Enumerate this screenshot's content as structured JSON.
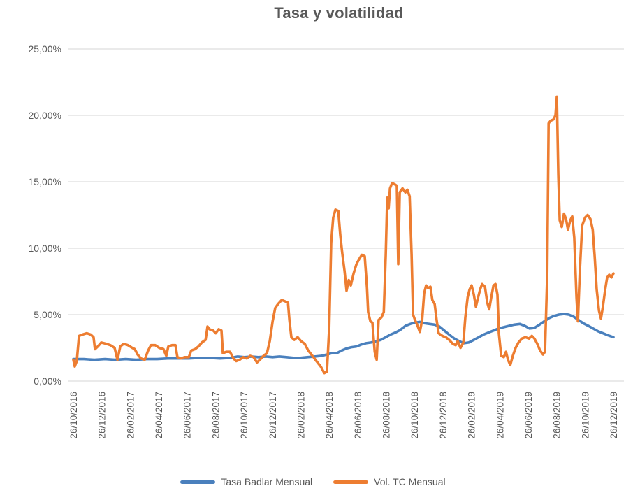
{
  "title": "Tasa y volatilidad",
  "colors": {
    "series1": "#4A80BD",
    "series2": "#ED7D31",
    "grid": "#D6D6D6",
    "text": "#595959",
    "title_text": "#595959",
    "background": "#FFFFFF"
  },
  "legend": {
    "items": [
      {
        "label": "Tasa Badlar Mensual",
        "color": "#4A80BD"
      },
      {
        "label": "Vol. TC Mensual",
        "color": "#ED7D31"
      }
    ]
  },
  "chart_data": {
    "type": "line",
    "title": "Tasa y volatilidad",
    "xlabel": "",
    "ylabel": "",
    "ylim": [
      0,
      25
    ],
    "grid": true,
    "legend_position": "bottom",
    "y_ticks": [
      "0,00%",
      "5,00%",
      "10,00%",
      "15,00%",
      "20,00%",
      "25,00%"
    ],
    "y_tick_values": [
      0,
      5,
      10,
      15,
      20,
      25
    ],
    "x_tick_labels": [
      "26/10/2016",
      "26/12/2016",
      "26/02/2017",
      "26/04/2017",
      "26/06/2017",
      "26/08/2017",
      "26/10/2017",
      "26/12/2017",
      "26/02/2018",
      "26/04/2018",
      "26/06/2018",
      "26/08/2018",
      "26/10/2018",
      "26/12/2018",
      "26/02/2019",
      "26/04/2019",
      "26/06/2019",
      "26/08/2019",
      "26/10/2019",
      "26/12/2019"
    ],
    "x_unit": "tick index (each tick = 2 months from 26/10/2016)",
    "series": [
      {
        "id": "tasa-badlar-mensual",
        "name": "Tasa Badlar Mensual",
        "color": "#4A80BD",
        "points": [
          [
            0,
            1.65
          ],
          [
            0.37,
            1.65
          ],
          [
            0.74,
            1.6
          ],
          [
            1.11,
            1.65
          ],
          [
            1.47,
            1.6
          ],
          [
            1.84,
            1.65
          ],
          [
            2.21,
            1.6
          ],
          [
            2.58,
            1.65
          ],
          [
            2.95,
            1.65
          ],
          [
            3.32,
            1.7
          ],
          [
            3.69,
            1.7
          ],
          [
            4.06,
            1.7
          ],
          [
            4.42,
            1.75
          ],
          [
            4.79,
            1.75
          ],
          [
            5.16,
            1.7
          ],
          [
            5.53,
            1.75
          ],
          [
            5.78,
            1.85
          ],
          [
            6.02,
            1.8
          ],
          [
            6.27,
            1.85
          ],
          [
            6.51,
            1.8
          ],
          [
            6.76,
            1.85
          ],
          [
            7.01,
            1.8
          ],
          [
            7.25,
            1.85
          ],
          [
            7.5,
            1.8
          ],
          [
            7.74,
            1.75
          ],
          [
            7.99,
            1.75
          ],
          [
            8.23,
            1.8
          ],
          [
            8.48,
            1.85
          ],
          [
            8.73,
            1.9
          ],
          [
            8.92,
            2.0
          ],
          [
            9.09,
            2.1
          ],
          [
            9.27,
            2.1
          ],
          [
            9.44,
            2.3
          ],
          [
            9.61,
            2.45
          ],
          [
            9.78,
            2.55
          ],
          [
            9.96,
            2.6
          ],
          [
            10.13,
            2.75
          ],
          [
            10.3,
            2.85
          ],
          [
            10.47,
            2.9
          ],
          [
            10.65,
            3.0
          ],
          [
            10.82,
            3.1
          ],
          [
            10.99,
            3.3
          ],
          [
            11.16,
            3.5
          ],
          [
            11.33,
            3.65
          ],
          [
            11.5,
            3.85
          ],
          [
            11.68,
            4.15
          ],
          [
            11.85,
            4.3
          ],
          [
            12.02,
            4.4
          ],
          [
            12.19,
            4.45
          ],
          [
            12.36,
            4.35
          ],
          [
            12.53,
            4.3
          ],
          [
            12.71,
            4.25
          ],
          [
            12.88,
            4.1
          ],
          [
            13.05,
            3.8
          ],
          [
            13.22,
            3.5
          ],
          [
            13.4,
            3.2
          ],
          [
            13.57,
            3.0
          ],
          [
            13.74,
            2.85
          ],
          [
            13.91,
            2.9
          ],
          [
            14.09,
            3.1
          ],
          [
            14.26,
            3.3
          ],
          [
            14.43,
            3.5
          ],
          [
            14.6,
            3.65
          ],
          [
            14.78,
            3.8
          ],
          [
            14.95,
            3.95
          ],
          [
            15.12,
            4.05
          ],
          [
            15.32,
            4.15
          ],
          [
            15.51,
            4.25
          ],
          [
            15.71,
            4.3
          ],
          [
            15.88,
            4.15
          ],
          [
            16.05,
            3.95
          ],
          [
            16.22,
            4.0
          ],
          [
            16.4,
            4.25
          ],
          [
            16.57,
            4.5
          ],
          [
            16.74,
            4.75
          ],
          [
            16.91,
            4.9
          ],
          [
            17.08,
            5.0
          ],
          [
            17.26,
            5.05
          ],
          [
            17.43,
            5.0
          ],
          [
            17.6,
            4.85
          ],
          [
            17.77,
            4.6
          ],
          [
            17.94,
            4.35
          ],
          [
            18.12,
            4.15
          ],
          [
            18.29,
            3.95
          ],
          [
            18.46,
            3.75
          ],
          [
            18.63,
            3.6
          ],
          [
            18.8,
            3.45
          ],
          [
            19,
            3.3
          ]
        ]
      },
      {
        "id": "vol-tc-mensual",
        "name": "Vol. TC Mensual",
        "color": "#ED7D31",
        "points": [
          [
            0,
            1.6
          ],
          [
            0.05,
            1.1
          ],
          [
            0.12,
            1.5
          ],
          [
            0.2,
            3.4
          ],
          [
            0.32,
            3.5
          ],
          [
            0.47,
            3.6
          ],
          [
            0.61,
            3.5
          ],
          [
            0.71,
            3.3
          ],
          [
            0.76,
            2.4
          ],
          [
            0.86,
            2.6
          ],
          [
            0.98,
            2.9
          ],
          [
            1.16,
            2.8
          ],
          [
            1.3,
            2.7
          ],
          [
            1.45,
            2.5
          ],
          [
            1.55,
            1.6
          ],
          [
            1.65,
            2.6
          ],
          [
            1.77,
            2.8
          ],
          [
            1.92,
            2.7
          ],
          [
            2.07,
            2.5
          ],
          [
            2.16,
            2.4
          ],
          [
            2.26,
            2.0
          ],
          [
            2.38,
            1.7
          ],
          [
            2.51,
            1.6
          ],
          [
            2.63,
            2.3
          ],
          [
            2.73,
            2.7
          ],
          [
            2.88,
            2.7
          ],
          [
            3.02,
            2.5
          ],
          [
            3.17,
            2.4
          ],
          [
            3.27,
            1.9
          ],
          [
            3.34,
            2.6
          ],
          [
            3.47,
            2.7
          ],
          [
            3.59,
            2.7
          ],
          [
            3.66,
            1.8
          ],
          [
            3.79,
            1.7
          ],
          [
            3.91,
            1.8
          ],
          [
            4.06,
            1.8
          ],
          [
            4.15,
            2.3
          ],
          [
            4.28,
            2.4
          ],
          [
            4.4,
            2.6
          ],
          [
            4.52,
            2.9
          ],
          [
            4.65,
            3.1
          ],
          [
            4.72,
            4.1
          ],
          [
            4.79,
            3.9
          ],
          [
            4.92,
            3.8
          ],
          [
            5.01,
            3.6
          ],
          [
            5.11,
            3.9
          ],
          [
            5.21,
            3.8
          ],
          [
            5.26,
            2.1
          ],
          [
            5.38,
            2.2
          ],
          [
            5.51,
            2.2
          ],
          [
            5.63,
            1.7
          ],
          [
            5.73,
            1.5
          ],
          [
            5.85,
            1.6
          ],
          [
            5.97,
            1.8
          ],
          [
            6.1,
            1.7
          ],
          [
            6.22,
            1.9
          ],
          [
            6.34,
            1.8
          ],
          [
            6.46,
            1.4
          ],
          [
            6.56,
            1.6
          ],
          [
            6.69,
            1.9
          ],
          [
            6.81,
            2.1
          ],
          [
            6.91,
            3.0
          ],
          [
            7.01,
            4.5
          ],
          [
            7.1,
            5.5
          ],
          [
            7.2,
            5.8
          ],
          [
            7.33,
            6.1
          ],
          [
            7.45,
            6.0
          ],
          [
            7.55,
            5.9
          ],
          [
            7.6,
            4.6
          ],
          [
            7.67,
            3.3
          ],
          [
            7.77,
            3.1
          ],
          [
            7.89,
            3.3
          ],
          [
            8.01,
            3.0
          ],
          [
            8.14,
            2.8
          ],
          [
            8.26,
            2.3
          ],
          [
            8.41,
            1.9
          ],
          [
            8.55,
            1.5
          ],
          [
            8.7,
            1.1
          ],
          [
            8.83,
            0.6
          ],
          [
            8.92,
            0.7
          ],
          [
            9.0,
            4.0
          ],
          [
            9.07,
            10.4
          ],
          [
            9.14,
            12.3
          ],
          [
            9.22,
            12.9
          ],
          [
            9.32,
            12.8
          ],
          [
            9.39,
            11.0
          ],
          [
            9.46,
            9.6
          ],
          [
            9.54,
            8.3
          ],
          [
            9.61,
            6.8
          ],
          [
            9.69,
            7.6
          ],
          [
            9.76,
            7.2
          ],
          [
            9.86,
            8.1
          ],
          [
            9.96,
            8.8
          ],
          [
            10.06,
            9.2
          ],
          [
            10.15,
            9.5
          ],
          [
            10.25,
            9.4
          ],
          [
            10.33,
            7.0
          ],
          [
            10.37,
            5.2
          ],
          [
            10.45,
            4.5
          ],
          [
            10.52,
            4.4
          ],
          [
            10.6,
            2.2
          ],
          [
            10.67,
            1.6
          ],
          [
            10.74,
            4.6
          ],
          [
            10.84,
            4.8
          ],
          [
            10.92,
            5.2
          ],
          [
            10.99,
            9.5
          ],
          [
            11.04,
            13.8
          ],
          [
            11.09,
            13.0
          ],
          [
            11.14,
            14.5
          ],
          [
            11.21,
            14.9
          ],
          [
            11.31,
            14.8
          ],
          [
            11.38,
            14.7
          ],
          [
            11.43,
            8.8
          ],
          [
            11.48,
            14.2
          ],
          [
            11.58,
            14.5
          ],
          [
            11.68,
            14.2
          ],
          [
            11.75,
            14.4
          ],
          [
            11.83,
            13.9
          ],
          [
            11.9,
            9.5
          ],
          [
            11.95,
            5.0
          ],
          [
            12.02,
            4.6
          ],
          [
            12.12,
            4.1
          ],
          [
            12.19,
            3.7
          ],
          [
            12.27,
            4.6
          ],
          [
            12.34,
            6.6
          ],
          [
            12.41,
            7.2
          ],
          [
            12.48,
            7.0
          ],
          [
            12.56,
            7.1
          ],
          [
            12.63,
            6.1
          ],
          [
            12.71,
            5.8
          ],
          [
            12.78,
            4.6
          ],
          [
            12.85,
            3.6
          ],
          [
            12.98,
            3.4
          ],
          [
            13.1,
            3.3
          ],
          [
            13.22,
            3.1
          ],
          [
            13.35,
            2.8
          ],
          [
            13.45,
            2.7
          ],
          [
            13.52,
            3.0
          ],
          [
            13.62,
            2.5
          ],
          [
            13.72,
            2.9
          ],
          [
            13.79,
            4.8
          ],
          [
            13.87,
            6.3
          ],
          [
            13.94,
            6.9
          ],
          [
            14.01,
            7.2
          ],
          [
            14.09,
            6.5
          ],
          [
            14.16,
            5.6
          ],
          [
            14.24,
            6.3
          ],
          [
            14.31,
            6.9
          ],
          [
            14.38,
            7.3
          ],
          [
            14.48,
            7.1
          ],
          [
            14.56,
            5.9
          ],
          [
            14.63,
            5.4
          ],
          [
            14.7,
            6.3
          ],
          [
            14.78,
            7.2
          ],
          [
            14.85,
            7.3
          ],
          [
            14.92,
            6.5
          ],
          [
            14.97,
            3.6
          ],
          [
            15.05,
            1.9
          ],
          [
            15.14,
            1.8
          ],
          [
            15.22,
            2.2
          ],
          [
            15.29,
            1.6
          ],
          [
            15.37,
            1.2
          ],
          [
            15.46,
            1.9
          ],
          [
            15.56,
            2.5
          ],
          [
            15.66,
            2.9
          ],
          [
            15.78,
            3.2
          ],
          [
            15.9,
            3.3
          ],
          [
            16.03,
            3.2
          ],
          [
            16.13,
            3.4
          ],
          [
            16.22,
            3.2
          ],
          [
            16.32,
            2.8
          ],
          [
            16.42,
            2.3
          ],
          [
            16.52,
            2.0
          ],
          [
            16.59,
            2.2
          ],
          [
            16.67,
            8.0
          ],
          [
            16.72,
            19.4
          ],
          [
            16.79,
            19.6
          ],
          [
            16.89,
            19.7
          ],
          [
            16.96,
            20.0
          ],
          [
            17.01,
            21.4
          ],
          [
            17.06,
            15.5
          ],
          [
            17.11,
            12.1
          ],
          [
            17.18,
            11.6
          ],
          [
            17.26,
            12.6
          ],
          [
            17.33,
            12.2
          ],
          [
            17.4,
            11.4
          ],
          [
            17.48,
            12.1
          ],
          [
            17.55,
            12.4
          ],
          [
            17.62,
            10.8
          ],
          [
            17.7,
            6.3
          ],
          [
            17.75,
            4.5
          ],
          [
            17.82,
            8.4
          ],
          [
            17.9,
            11.7
          ],
          [
            18.0,
            12.3
          ],
          [
            18.09,
            12.5
          ],
          [
            18.19,
            12.2
          ],
          [
            18.27,
            11.4
          ],
          [
            18.34,
            9.4
          ],
          [
            18.41,
            6.9
          ],
          [
            18.49,
            5.3
          ],
          [
            18.56,
            4.7
          ],
          [
            18.63,
            5.6
          ],
          [
            18.71,
            6.9
          ],
          [
            18.78,
            7.8
          ],
          [
            18.85,
            8.0
          ],
          [
            18.93,
            7.8
          ],
          [
            19.0,
            8.1
          ]
        ]
      }
    ]
  }
}
